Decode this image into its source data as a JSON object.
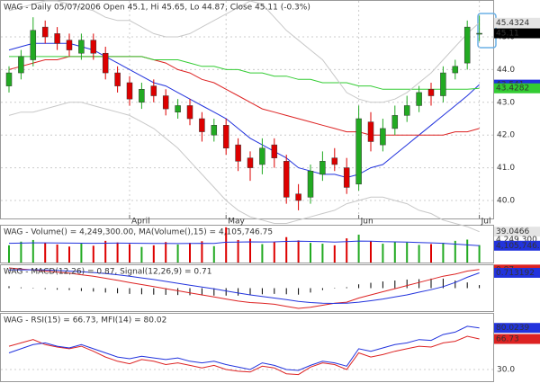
{
  "chart_data": [
    {
      "type": "candlestick",
      "title": "WAG - Daily 05/07/2006 Open 45.1, Hi 45.65, Lo 44.87, Close 45.11 (-0.3%)",
      "categories": [
        null,
        null,
        null,
        null,
        null,
        null,
        null,
        null,
        null,
        null,
        "April",
        null,
        null,
        null,
        null,
        null,
        null,
        null,
        "May",
        null,
        null,
        null,
        null,
        null,
        null,
        null,
        null,
        null,
        null,
        "Jun",
        null,
        null,
        null,
        null,
        null,
        null,
        null,
        null,
        null,
        "Jul"
      ],
      "open": [
        43.5,
        43.9,
        44.3,
        45.3,
        45.1,
        44.9,
        44.5,
        44.9,
        44.5,
        43.9,
        43.6,
        43.0,
        43.5,
        43.2,
        42.7,
        42.9,
        42.5,
        42.0,
        42.3,
        41.7,
        41.3,
        41.1,
        41.7,
        41.2,
        40.2,
        40.1,
        40.8,
        41.3,
        41.0,
        40.5,
        42.4,
        41.7,
        42.2,
        42.6,
        42.9,
        43.4,
        43.2,
        43.9,
        44.2,
        45.1
      ],
      "high": [
        44.1,
        44.6,
        45.6,
        45.5,
        45.3,
        45.1,
        45.1,
        45.1,
        44.7,
        44.1,
        43.8,
        43.6,
        43.7,
        43.4,
        43.1,
        43.1,
        42.7,
        42.5,
        42.5,
        41.9,
        41.5,
        41.9,
        41.9,
        41.4,
        40.5,
        41.1,
        41.5,
        41.6,
        41.3,
        42.9,
        42.7,
        42.5,
        42.9,
        43.2,
        43.5,
        43.6,
        44.1,
        44.3,
        45.5,
        45.65
      ],
      "low": [
        43.3,
        43.7,
        44.1,
        44.8,
        44.6,
        44.4,
        44.3,
        44.3,
        43.7,
        43.3,
        42.9,
        42.8,
        43.0,
        42.6,
        42.5,
        42.3,
        41.8,
        41.8,
        41.4,
        40.9,
        40.6,
        40.8,
        41.0,
        39.9,
        39.7,
        39.9,
        40.6,
        40.9,
        40.2,
        40.3,
        41.5,
        41.5,
        42.0,
        42.4,
        42.7,
        42.9,
        43.0,
        43.7,
        44.0,
        44.87
      ],
      "close": [
        43.9,
        44.4,
        45.2,
        45.0,
        44.8,
        44.6,
        44.9,
        44.5,
        43.9,
        43.5,
        43.1,
        43.4,
        43.2,
        42.8,
        42.9,
        42.5,
        42.1,
        42.3,
        41.6,
        41.2,
        41.0,
        41.6,
        41.3,
        40.1,
        40.0,
        40.9,
        41.2,
        41.1,
        40.4,
        42.5,
        41.8,
        42.2,
        42.6,
        42.9,
        43.3,
        43.2,
        43.9,
        44.1,
        45.3,
        45.11
      ],
      "up_color": "#22aa22",
      "down_color": "#dd0000",
      "ylim": [
        39.45,
        46.1
      ],
      "yticks": [
        {
          "value": 40,
          "label": "40.0"
        },
        {
          "value": 41,
          "label": "41.0"
        },
        {
          "value": 42,
          "label": "42.0"
        },
        {
          "value": 43,
          "label": "43.0"
        },
        {
          "value": 44,
          "label": "44.0"
        },
        {
          "value": 45,
          "label": "45.0"
        }
      ],
      "grid": true,
      "series": [
        {
          "color": "#2233dd",
          "end_label": true,
          "values": [
            44.6,
            44.7,
            44.8,
            44.8,
            44.8,
            44.8,
            44.7,
            44.6,
            44.4,
            44.2,
            44.0,
            43.8,
            43.6,
            43.5,
            43.3,
            43.1,
            42.9,
            42.7,
            42.5,
            42.2,
            41.9,
            41.7,
            41.5,
            41.3,
            41.0,
            40.9,
            40.8,
            40.8,
            40.7,
            40.8,
            41.0,
            41.1,
            41.4,
            41.7,
            42.0,
            42.3,
            42.6,
            42.9,
            43.2,
            43.541
          ]
        },
        {
          "color": "#dd2222",
          "end_label": false,
          "values": [
            44.0,
            44.1,
            44.2,
            44.3,
            44.3,
            44.4,
            44.4,
            44.4,
            44.4,
            44.4,
            44.4,
            44.4,
            44.3,
            44.2,
            44.0,
            43.9,
            43.7,
            43.6,
            43.4,
            43.2,
            43.0,
            42.8,
            42.7,
            42.6,
            42.5,
            42.4,
            42.3,
            42.2,
            42.1,
            42.1,
            42.0,
            42.0,
            42.0,
            42.0,
            42.0,
            42.0,
            42.0,
            42.1,
            42.1,
            42.2
          ]
        },
        {
          "color": "#33cc33",
          "end_label": true,
          "values": [
            44.4,
            44.4,
            44.4,
            44.4,
            44.4,
            44.4,
            44.4,
            44.4,
            44.4,
            44.4,
            44.4,
            44.4,
            44.3,
            44.3,
            44.3,
            44.2,
            44.1,
            44.1,
            44.0,
            44.0,
            43.9,
            43.9,
            43.8,
            43.8,
            43.7,
            43.7,
            43.6,
            43.6,
            43.6,
            43.5,
            43.5,
            43.4,
            43.4,
            43.4,
            43.4,
            43.4,
            43.4,
            43.4,
            43.4,
            43.4282
          ]
        },
        {
          "color": "#c8c8c8",
          "end_label": true,
          "values": [
            45.8,
            45.9,
            46.0,
            46.1,
            46.1,
            46.0,
            45.9,
            45.8,
            45.6,
            45.5,
            45.5,
            45.3,
            45.1,
            45.0,
            45.0,
            45.1,
            45.3,
            45.5,
            45.7,
            45.9,
            46.1,
            46.0,
            45.6,
            45.2,
            44.9,
            44.6,
            44.3,
            43.8,
            43.3,
            43.1,
            43.0,
            43.0,
            43.1,
            43.3,
            43.6,
            43.9,
            44.3,
            44.7,
            45.1,
            45.4324
          ]
        },
        {
          "color": "#c8c8c8",
          "end_label": true,
          "values": [
            42.6,
            42.7,
            42.7,
            42.8,
            42.9,
            43.0,
            43.0,
            42.9,
            42.8,
            42.7,
            42.6,
            42.4,
            42.2,
            41.9,
            41.6,
            41.2,
            40.8,
            40.4,
            40.0,
            39.7,
            39.5,
            39.4,
            39.3,
            39.3,
            39.4,
            39.5,
            39.6,
            39.7,
            39.9,
            40.0,
            40.1,
            40.1,
            40.0,
            39.9,
            39.7,
            39.6,
            39.4,
            39.3,
            39.2,
            39.0466
          ]
        }
      ]
    },
    {
      "type": "bar",
      "title": "WAG - Volume() = 4,249,300.00, MA(Volume(),15) = 4,105,746.75",
      "values": [
        4200000,
        5100000,
        5500000,
        4800000,
        4400000,
        3900000,
        4600000,
        4100000,
        5300000,
        4900000,
        4500000,
        3800000,
        4200000,
        5000000,
        4400000,
        4800000,
        5200000,
        4000000,
        8600000,
        5500000,
        5800000,
        4500000,
        5000000,
        6200000,
        5400000,
        4800000,
        4600000,
        4200000,
        5900000,
        6800000,
        5200000,
        4600000,
        5000000,
        4900000,
        4300000,
        4500000,
        4800000,
        5300000,
        5600000,
        4249300
      ],
      "value_labels": [
        null,
        null,
        null,
        null,
        null,
        null,
        null,
        null,
        null,
        null,
        null,
        null,
        null,
        null,
        null,
        null,
        null,
        null,
        null,
        null,
        null,
        null,
        null,
        null,
        null,
        null,
        null,
        null,
        null,
        null,
        null,
        null,
        null,
        null,
        null,
        null,
        null,
        null,
        null,
        "4,249,300"
      ],
      "ylim": [
        0,
        9000000
      ],
      "series": [
        {
          "color": "#2233dd",
          "end_label": true,
          "values": [
            4700000,
            4750000,
            4800000,
            4800000,
            4780000,
            4750000,
            4720000,
            4700000,
            4720000,
            4740000,
            4730000,
            4700000,
            4650000,
            4680000,
            4640000,
            4660000,
            4700000,
            4680000,
            4950000,
            5000000,
            5050000,
            5020000,
            5050000,
            5150000,
            5200000,
            5150000,
            5100000,
            5000000,
            5100000,
            5250000,
            5200000,
            5100000,
            5050000,
            5000000,
            4900000,
            4800000,
            4700000,
            4500000,
            4300000,
            4105746.75
          ],
          "value_labels": [
            null,
            null,
            null,
            null,
            null,
            null,
            null,
            null,
            null,
            null,
            null,
            null,
            null,
            null,
            null,
            null,
            null,
            null,
            null,
            null,
            null,
            null,
            null,
            null,
            null,
            null,
            null,
            null,
            null,
            null,
            null,
            null,
            null,
            null,
            null,
            null,
            null,
            null,
            null,
            "4,105,746.75"
          ]
        }
      ]
    },
    {
      "type": "line",
      "title": "WAG - MACD(12,26) = 0.87, Signal(12,26,9) = 0.71",
      "ylim": [
        -1.13,
        1.08
      ],
      "y2lim": [
        -1.2,
        1.2
      ],
      "histogram": {
        "color": "#000000",
        "axis": "y2",
        "values": [
          0.1,
          0.04,
          -0.01,
          -0.05,
          -0.08,
          -0.1,
          -0.15,
          -0.18,
          -0.23,
          -0.27,
          -0.3,
          -0.32,
          -0.34,
          -0.35,
          -0.36,
          -0.37,
          -0.38,
          -0.39,
          -0.39,
          -0.39,
          -0.37,
          -0.32,
          -0.3,
          -0.32,
          -0.34,
          -0.23,
          -0.1,
          0.01,
          0.05,
          0.2,
          0.28,
          0.35,
          0.4,
          0.45,
          0.47,
          0.5,
          0.5,
          0.4,
          0.3,
          0.16
        ]
      },
      "series": [
        {
          "color": "#dd2222",
          "end_label": true,
          "values": [
            0.95,
            0.9,
            0.85,
            0.8,
            0.75,
            0.7,
            0.62,
            0.55,
            0.45,
            0.35,
            0.25,
            0.15,
            0.05,
            -0.05,
            -0.15,
            -0.25,
            -0.35,
            -0.45,
            -0.55,
            -0.65,
            -0.72,
            -0.75,
            -0.8,
            -0.9,
            -1.0,
            -0.95,
            -0.85,
            -0.75,
            -0.7,
            -0.5,
            -0.35,
            -0.2,
            -0.05,
            0.1,
            0.25,
            0.4,
            0.55,
            0.65,
            0.8,
            0.87
          ]
        },
        {
          "color": "#2233dd",
          "end_label": true,
          "values": [
            0.85,
            0.86,
            0.86,
            0.85,
            0.83,
            0.8,
            0.77,
            0.73,
            0.68,
            0.62,
            0.55,
            0.47,
            0.39,
            0.3,
            0.21,
            0.12,
            0.03,
            -0.06,
            -0.16,
            -0.26,
            -0.35,
            -0.43,
            -0.5,
            -0.58,
            -0.66,
            -0.72,
            -0.75,
            -0.76,
            -0.75,
            -0.7,
            -0.63,
            -0.55,
            -0.45,
            -0.35,
            -0.22,
            -0.1,
            0.05,
            0.25,
            0.5,
            0.713192
          ]
        }
      ]
    },
    {
      "type": "line",
      "title": "WAG - RSI(15) = 66.73, MFI(14) = 80.02",
      "ylim": [
        16,
        97
      ],
      "yticks": [
        {
          "value": 30,
          "label": "30.0"
        }
      ],
      "grid": true,
      "series": [
        {
          "color": "#dd2222",
          "end_label": true,
          "values": [
            58,
            62,
            66,
            60,
            57,
            55,
            58,
            52,
            45,
            40,
            37,
            42,
            40,
            36,
            38,
            35,
            32,
            35,
            30,
            28,
            27,
            34,
            32,
            25,
            24,
            33,
            38,
            36,
            30,
            50,
            45,
            48,
            52,
            55,
            58,
            57,
            62,
            64,
            70,
            66.73
          ]
        },
        {
          "color": "#2233dd",
          "end_label": true,
          "values": [
            50,
            55,
            60,
            62,
            58,
            56,
            60,
            55,
            50,
            45,
            43,
            46,
            44,
            42,
            44,
            40,
            38,
            40,
            36,
            33,
            30,
            38,
            35,
            30,
            29,
            35,
            40,
            38,
            34,
            55,
            52,
            56,
            60,
            62,
            66,
            65,
            72,
            75,
            82,
            80.0239
          ]
        }
      ]
    }
  ]
}
